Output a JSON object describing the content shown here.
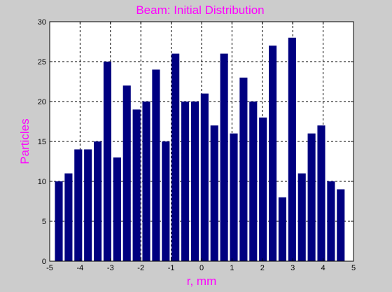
{
  "chart_data": {
    "type": "bar",
    "title": "Beam: Initial Distribution",
    "xlabel": "r, mm",
    "ylabel": "Particles",
    "xlim": [
      -5,
      5
    ],
    "ylim": [
      0,
      30
    ],
    "xticks": [
      "-5",
      "-4",
      "-3",
      "-2",
      "-1",
      "0",
      "1",
      "2",
      "3",
      "4",
      "5"
    ],
    "yticks": [
      "0",
      "5",
      "10",
      "15",
      "20",
      "25",
      "30"
    ],
    "grid": true,
    "x": [
      -4.7,
      -4.38,
      -4.06,
      -3.74,
      -3.42,
      -3.1,
      -2.78,
      -2.46,
      -2.14,
      -1.82,
      -1.5,
      -1.18,
      -0.86,
      -0.54,
      -0.22,
      0.1,
      0.42,
      0.74,
      1.06,
      1.38,
      1.7,
      2.02,
      2.34,
      2.66,
      2.98,
      3.3,
      3.62,
      3.94,
      4.26,
      4.58
    ],
    "values": [
      10,
      11,
      14,
      14,
      15,
      25,
      13,
      22,
      19,
      20,
      24,
      15,
      26,
      20,
      20,
      21,
      17,
      26,
      16,
      23,
      20,
      18,
      27,
      8,
      28,
      11,
      16,
      17,
      10,
      9
    ],
    "bar_color": "#000080",
    "title_color": "#ff00ff",
    "background_color": "#cccccc",
    "plot_background": "#ffffff"
  }
}
